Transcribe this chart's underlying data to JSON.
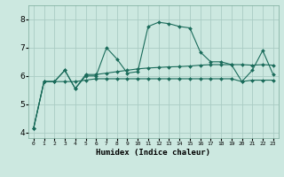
{
  "xlabel": "Humidex (Indice chaleur)",
  "background_color": "#cce8e0",
  "grid_color": "#aaccC4",
  "line_color": "#1a6b5a",
  "xlim": [
    -0.5,
    23.5
  ],
  "ylim": [
    3.8,
    8.5
  ],
  "yticks": [
    4,
    5,
    6,
    7,
    8
  ],
  "xtick_labels": [
    "0",
    "1",
    "2",
    "3",
    "4",
    "5",
    "6",
    "7",
    "8",
    "9",
    "10",
    "11",
    "12",
    "13",
    "14",
    "15",
    "16",
    "17",
    "18",
    "19",
    "20",
    "21",
    "22",
    "23"
  ],
  "lines": [
    [
      4.15,
      5.8,
      5.8,
      6.2,
      5.55,
      6.0,
      6.0,
      7.0,
      6.6,
      6.1,
      6.15,
      7.75,
      7.9,
      7.85,
      7.75,
      7.7,
      6.85,
      6.5,
      6.5,
      6.4,
      5.8,
      6.2,
      6.9,
      6.05
    ],
    [
      4.15,
      5.8,
      5.8,
      6.2,
      5.55,
      6.05,
      6.05,
      6.1,
      6.15,
      6.2,
      6.25,
      6.28,
      6.3,
      6.32,
      6.33,
      6.35,
      6.38,
      6.4,
      6.4,
      6.4,
      6.4,
      6.38,
      6.4,
      6.38
    ],
    [
      4.15,
      5.8,
      5.8,
      5.8,
      5.8,
      5.85,
      5.9,
      5.9,
      5.9,
      5.9,
      5.9,
      5.9,
      5.9,
      5.9,
      5.9,
      5.9,
      5.9,
      5.9,
      5.9,
      5.9,
      5.8,
      5.85,
      5.85,
      5.85
    ]
  ]
}
